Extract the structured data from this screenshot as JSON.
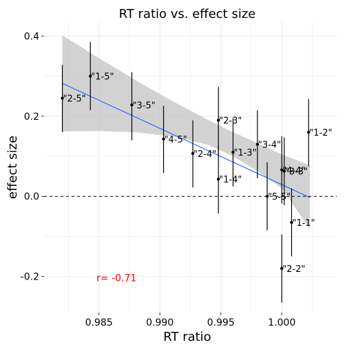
{
  "chart_data": {
    "type": "scatter",
    "title": "RT ratio vs. effect size",
    "xlabel": "RT ratio",
    "ylabel": "effect size",
    "xlim": [
      0.9805,
      1.0045
    ],
    "ylim": [
      -0.29,
      0.435
    ],
    "xticks": [
      0.985,
      0.99,
      0.995,
      1.0
    ],
    "xtick_labels": [
      "0.985",
      "0.990",
      "0.995",
      "1.000"
    ],
    "yticks": [
      -0.2,
      0.0,
      0.2,
      0.4
    ],
    "ytick_labels": [
      "-0.2",
      "0.0",
      "0.2",
      "0.4"
    ],
    "grid": true,
    "background": "#ffffff",
    "grid_color": "#ebebeb",
    "points": [
      {
        "label": "\"2-5\"",
        "x": 0.982,
        "y": 0.245,
        "ymin": 0.16,
        "ymax": 0.328
      },
      {
        "label": "\"1-5\"",
        "x": 0.9843,
        "y": 0.3,
        "ymin": 0.215,
        "ymax": 0.385
      },
      {
        "label": "\"3-5\"",
        "x": 0.9877,
        "y": 0.228,
        "ymin": 0.14,
        "ymax": 0.31
      },
      {
        "label": "\"4-5\"",
        "x": 0.9903,
        "y": 0.143,
        "ymin": 0.058,
        "ymax": 0.226
      },
      {
        "label": "\"2-4\"",
        "x": 0.9927,
        "y": 0.107,
        "ymin": 0.022,
        "ymax": 0.19
      },
      {
        "label": "\"2-3\"",
        "x": 0.9948,
        "y": 0.19,
        "ymin": 0.105,
        "ymax": 0.273
      },
      {
        "label": "\"1-4\"",
        "x": 0.9948,
        "y": 0.043,
        "ymin": -0.043,
        "ymax": 0.128
      },
      {
        "label": "\"1-3\"",
        "x": 0.996,
        "y": 0.11,
        "ymin": 0.025,
        "ymax": 0.195
      },
      {
        "label": "\"3-4\"",
        "x": 0.998,
        "y": 0.13,
        "ymin": 0.045,
        "ymax": 0.215
      },
      {
        "label": "\"5-5\"",
        "x": 0.9988,
        "y": 0.0,
        "ymin": -0.085,
        "ymax": 0.085
      },
      {
        "label": "\"4-4\"",
        "x": 1.0,
        "y": 0.066,
        "ymin": -0.018,
        "ymax": 0.15
      },
      {
        "label": "\"2-2\"",
        "x": 1.0,
        "y": -0.18,
        "ymin": -0.265,
        "ymax": -0.095
      },
      {
        "label": "\"3-3\"",
        "x": 1.0002,
        "y": 0.063,
        "ymin": -0.022,
        "ymax": 0.147
      },
      {
        "label": "\"1-1\"",
        "x": 1.0008,
        "y": -0.065,
        "ymin": -0.15,
        "ymax": 0.02
      },
      {
        "label": "\"1-2\"",
        "x": 1.0022,
        "y": 0.16,
        "ymin": 0.075,
        "ymax": 0.243
      }
    ],
    "fit_line": {
      "x": [
        0.982,
        1.0023
      ],
      "y": [
        0.282,
        -0.003
      ],
      "color": "#3366ff"
    },
    "confidence_band": {
      "color": "#bfbfbf",
      "x": [
        0.982,
        0.985,
        0.988,
        0.991,
        0.994,
        0.996,
        0.998,
        1.0,
        1.0023
      ],
      "upper": [
        0.402,
        0.345,
        0.29,
        0.238,
        0.19,
        0.16,
        0.133,
        0.105,
        0.077
      ],
      "lower": [
        0.162,
        0.163,
        0.16,
        0.15,
        0.128,
        0.1,
        0.063,
        0.02,
        -0.082
      ]
    },
    "hline": {
      "y": 0.0,
      "style": "dashed",
      "color": "#000000"
    },
    "annotation": {
      "text": "r= -0.71",
      "x": 0.9848,
      "y": -0.203,
      "color": "#ff0000"
    }
  }
}
